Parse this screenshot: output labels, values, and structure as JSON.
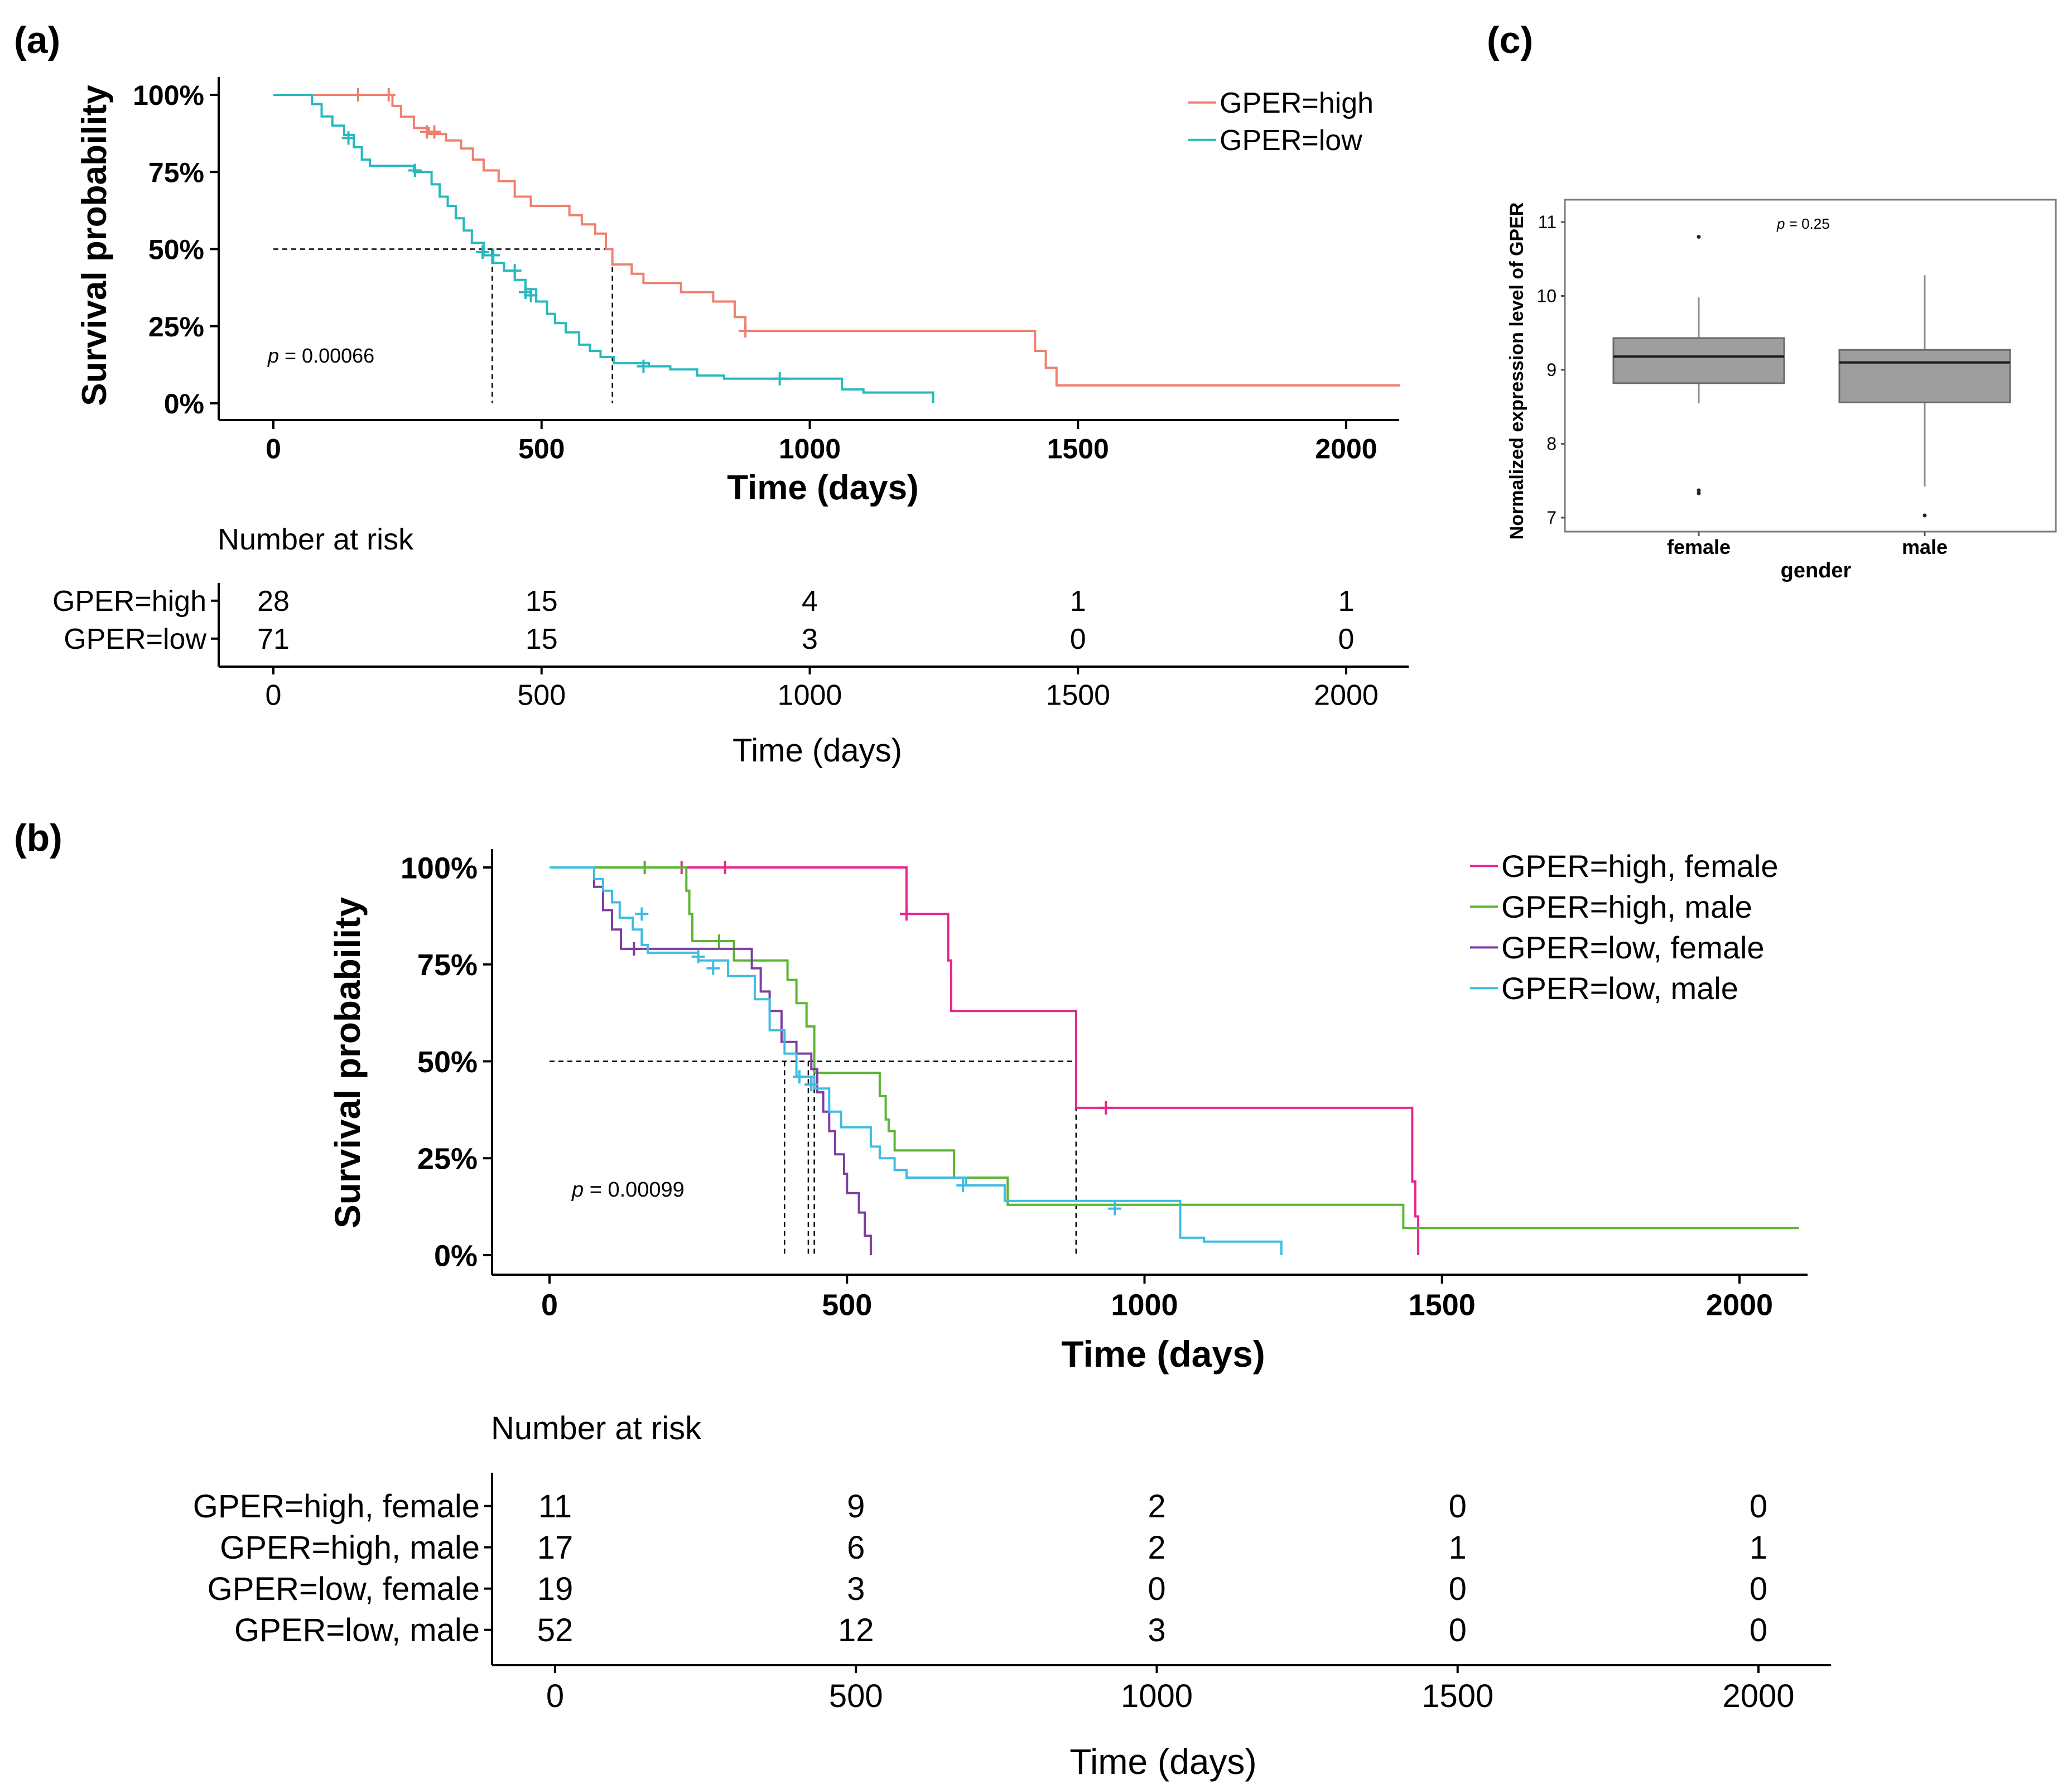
{
  "chart_data": [
    {
      "panel": "(a)",
      "type": "line",
      "subtype": "kaplan-meier",
      "ylabel": "Survival probability",
      "xlabel": "Time (days)",
      "xlim": [
        0,
        2100
      ],
      "ylim": [
        0,
        1
      ],
      "x_ticks": [
        "0",
        "500",
        "1000",
        "1500",
        "2000"
      ],
      "y_ticks": [
        "100%",
        "75%",
        "50%",
        "25%",
        "0%"
      ],
      "pvalue_prefix": "p",
      "pvalue_text": " = 0.00066",
      "median_line": 0.5,
      "median_times": [
        408,
        632
      ],
      "series": [
        {
          "name": "GPER=high",
          "color": "#f07f6f",
          "steps": [
            [
              0,
              1
            ],
            [
              222,
              0.964
            ],
            [
              230,
              0.964
            ],
            [
              238,
              0.929
            ],
            [
              262,
              0.893
            ],
            [
              290,
              0.873
            ],
            [
              322,
              0.852
            ],
            [
              350,
              0.826
            ],
            [
              372,
              0.79
            ],
            [
              392,
              0.755
            ],
            [
              420,
              0.72
            ],
            [
              450,
              0.67
            ],
            [
              480,
              0.64
            ],
            [
              552,
              0.61
            ],
            [
              575,
              0.58
            ],
            [
              600,
              0.55
            ],
            [
              620,
              0.5
            ],
            [
              632,
              0.45
            ],
            [
              668,
              0.42
            ],
            [
              690,
              0.39
            ],
            [
              760,
              0.36
            ],
            [
              820,
              0.33
            ],
            [
              860,
              0.28
            ],
            [
              880,
              0.235
            ],
            [
              1420,
              0.17
            ],
            [
              1440,
              0.115
            ],
            [
              1460,
              0.058
            ],
            [
              2100,
              0.058
            ]
          ],
          "censors": [
            [
              158,
              1
            ],
            [
              215,
              1
            ],
            [
              286,
              0.88
            ],
            [
              300,
              0.88
            ],
            [
              880,
              0.235
            ]
          ]
        },
        {
          "name": "GPER=low",
          "color": "#27b9be",
          "steps": [
            [
              0,
              1
            ],
            [
              72,
              0.97
            ],
            [
              90,
              0.93
            ],
            [
              110,
              0.9
            ],
            [
              132,
              0.87
            ],
            [
              150,
              0.83
            ],
            [
              165,
              0.79
            ],
            [
              180,
              0.77
            ],
            [
              262,
              0.75
            ],
            [
              295,
              0.71
            ],
            [
              310,
              0.67
            ],
            [
              325,
              0.64
            ],
            [
              340,
              0.6
            ],
            [
              355,
              0.56
            ],
            [
              370,
              0.52
            ],
            [
              392,
              0.48
            ],
            [
              408,
              0.455
            ],
            [
              430,
              0.43
            ],
            [
              450,
              0.4
            ],
            [
              470,
              0.37
            ],
            [
              490,
              0.33
            ],
            [
              510,
              0.29
            ],
            [
              525,
              0.26
            ],
            [
              545,
              0.23
            ],
            [
              570,
              0.19
            ],
            [
              590,
              0.17
            ],
            [
              610,
              0.15
            ],
            [
              635,
              0.13
            ],
            [
              700,
              0.12
            ],
            [
              740,
              0.11
            ],
            [
              790,
              0.09
            ],
            [
              840,
              0.08
            ],
            [
              1060,
              0.045
            ],
            [
              1100,
              0.035
            ],
            [
              1230,
              0.0
            ],
            [
              1230,
              0.0
            ]
          ],
          "censors": [
            [
              140,
              0.86
            ],
            [
              264,
              0.755
            ],
            [
              390,
              0.49
            ],
            [
              410,
              0.48
            ],
            [
              450,
              0.43
            ],
            [
              470,
              0.36
            ],
            [
              480,
              0.35
            ],
            [
              690,
              0.12
            ],
            [
              944,
              0.08
            ]
          ]
        }
      ],
      "risk_table": {
        "title": "Number at risk",
        "xlabel": "Time (days)",
        "x_ticks": [
          "0",
          "500",
          "1000",
          "1500",
          "2000"
        ],
        "rows": [
          {
            "name": "GPER=high",
            "color": "#f07f6f",
            "values": [
              "28",
              "15",
              "4",
              "1",
              "1"
            ]
          },
          {
            "name": "GPER=low",
            "color": "#27b9be",
            "values": [
              "71",
              "15",
              "3",
              "0",
              "0"
            ]
          }
        ]
      }
    },
    {
      "panel": "(b)",
      "type": "line",
      "subtype": "kaplan-meier",
      "ylabel": "Survival probability",
      "xlabel": "Time (days)",
      "xlim": [
        0,
        2100
      ],
      "ylim": [
        0,
        1
      ],
      "x_ticks": [
        "0",
        "500",
        "1000",
        "1500",
        "2000"
      ],
      "y_ticks": [
        "100%",
        "75%",
        "50%",
        "25%",
        "0%"
      ],
      "pvalue_prefix": "p",
      "pvalue_text": " = 0.00099",
      "median_line": 0.5,
      "median_times": [
        395,
        435,
        445,
        885
      ],
      "series": [
        {
          "name": "GPER=high, female",
          "color": "#e8268f",
          "steps": [
            [
              0,
              1
            ],
            [
              600,
              0.88
            ],
            [
              670,
              0.76
            ],
            [
              675,
              0.63
            ],
            [
              885,
              0.38
            ],
            [
              1450,
              0.19
            ],
            [
              1455,
              0.1
            ],
            [
              1460,
              0.0
            ],
            [
              1460,
              0.0
            ]
          ],
          "censors": [
            [
              160,
              1
            ],
            [
              222,
              1
            ],
            [
              295,
              1
            ],
            [
              600,
              0.88
            ],
            [
              935,
              0.38
            ]
          ]
        },
        {
          "name": "GPER=high, male",
          "color": "#5bb531",
          "steps": [
            [
              0,
              1
            ],
            [
              75,
              1
            ],
            [
              230,
              0.94
            ],
            [
              235,
              0.88
            ],
            [
              240,
              0.81
            ],
            [
              310,
              0.76
            ],
            [
              400,
              0.71
            ],
            [
              415,
              0.65
            ],
            [
              432,
              0.59
            ],
            [
              445,
              0.47
            ],
            [
              555,
              0.41
            ],
            [
              565,
              0.35
            ],
            [
              570,
              0.32
            ],
            [
              580,
              0.27
            ],
            [
              680,
              0.2
            ],
            [
              770,
              0.13
            ],
            [
              1435,
              0.07
            ],
            [
              2100,
              0.07
            ]
          ],
          "censors": [
            [
              160,
              1
            ],
            [
              285,
              0.81
            ]
          ]
        },
        {
          "name": "GPER=low, female",
          "color": "#7e3ea0",
          "steps": [
            [
              0,
              1
            ],
            [
              75,
              0.95
            ],
            [
              90,
              0.89
            ],
            [
              105,
              0.84
            ],
            [
              120,
              0.79
            ],
            [
              340,
              0.74
            ],
            [
              355,
              0.68
            ],
            [
              370,
              0.63
            ],
            [
              390,
              0.55
            ],
            [
              415,
              0.52
            ],
            [
              440,
              0.48
            ],
            [
              450,
              0.42
            ],
            [
              460,
              0.37
            ],
            [
              470,
              0.32
            ],
            [
              480,
              0.26
            ],
            [
              495,
              0.21
            ],
            [
              500,
              0.16
            ],
            [
              520,
              0.11
            ],
            [
              530,
              0.05
            ],
            [
              540,
              0.0
            ],
            [
              540,
              0.0
            ]
          ],
          "censors": [
            [
              142,
              0.79
            ],
            [
              440,
              0.44
            ]
          ]
        },
        {
          "name": "GPER=low, male",
          "color": "#3dbde2",
          "steps": [
            [
              0,
              1
            ],
            [
              75,
              0.97
            ],
            [
              90,
              0.94
            ],
            [
              105,
              0.91
            ],
            [
              118,
              0.87
            ],
            [
              140,
              0.84
            ],
            [
              155,
              0.8
            ],
            [
              165,
              0.78
            ],
            [
              250,
              0.76
            ],
            [
              300,
              0.72
            ],
            [
              345,
              0.66
            ],
            [
              370,
              0.58
            ],
            [
              395,
              0.52
            ],
            [
              415,
              0.46
            ],
            [
              445,
              0.43
            ],
            [
              470,
              0.37
            ],
            [
              490,
              0.33
            ],
            [
              540,
              0.28
            ],
            [
              555,
              0.25
            ],
            [
              580,
              0.22
            ],
            [
              600,
              0.2
            ],
            [
              700,
              0.18
            ],
            [
              765,
              0.14
            ],
            [
              1060,
              0.045
            ],
            [
              1100,
              0.035
            ],
            [
              1230,
              0.0
            ],
            [
              1230,
              0.0
            ]
          ],
          "censors": [
            [
              155,
              0.88
            ],
            [
              250,
              0.77
            ],
            [
              275,
              0.74
            ],
            [
              420,
              0.46
            ],
            [
              440,
              0.44
            ],
            [
              695,
              0.18
            ],
            [
              950,
              0.12
            ]
          ]
        }
      ],
      "risk_table": {
        "title": "Number at risk",
        "xlabel": "Time (days)",
        "x_ticks": [
          "0",
          "500",
          "1000",
          "1500",
          "2000"
        ],
        "rows": [
          {
            "name": "GPER=high, female",
            "color": "#e8268f",
            "values": [
              "11",
              "9",
              "2",
              "0",
              "0"
            ]
          },
          {
            "name": "GPER=high, male",
            "color": "#5bb531",
            "values": [
              "17",
              "6",
              "2",
              "1",
              "1"
            ]
          },
          {
            "name": "GPER=low, female",
            "color": "#7e3ea0",
            "values": [
              "19",
              "3",
              "0",
              "0",
              "0"
            ]
          },
          {
            "name": "GPER=low, male",
            "color": "#3dbde2",
            "values": [
              "52",
              "12",
              "3",
              "0",
              "0"
            ]
          }
        ]
      }
    },
    {
      "panel": "(c)",
      "type": "box",
      "ylabel": "Normalized expression level of GPER",
      "xlabel": "gender",
      "ylim": [
        6.8,
        11.3
      ],
      "y_ticks": [
        "11",
        "10",
        "9",
        "8",
        "7"
      ],
      "categories": [
        "female",
        "male"
      ],
      "box_color": "#9e9e9e",
      "pvalue_prefix": "p",
      "pvalue_text": " = 0.25",
      "boxes": [
        {
          "label": "female",
          "whisker_low": 8.55,
          "q1": 8.82,
          "median": 9.18,
          "q3": 9.43,
          "whisker_high": 9.98,
          "outliers": [
            10.8,
            7.37,
            7.33
          ]
        },
        {
          "label": "male",
          "whisker_low": 7.42,
          "q1": 8.56,
          "median": 9.1,
          "q3": 9.27,
          "whisker_high": 10.28,
          "outliers": [
            7.03
          ]
        }
      ]
    }
  ]
}
